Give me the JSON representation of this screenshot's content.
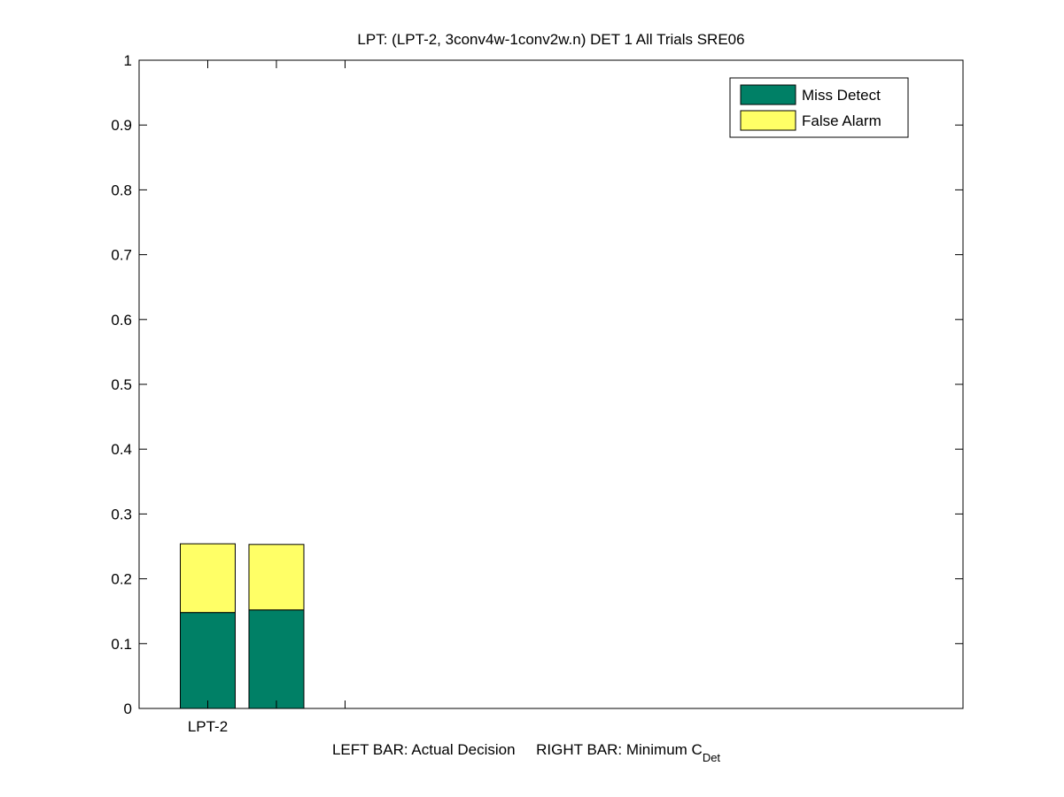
{
  "chart_data": {
    "type": "stacked_bar",
    "title": "LPT: (LPT-2, 3conv4w-1conv2w.n) DET 1 All Trials SRE06",
    "xlabel": "LEFT BAR: Actual Decision     RIGHT BAR: Minimum C",
    "xlabel_subscript": "Det",
    "x": [
      1,
      2,
      3
    ],
    "categories": [
      "LPT-2",
      null,
      null
    ],
    "series": [
      {
        "name": "Miss Detect",
        "color": "#008066",
        "values": [
          0.148,
          0.152,
          null
        ]
      },
      {
        "name": "False Alarm",
        "color": "#ffff66",
        "values": [
          0.106,
          0.101,
          null
        ]
      }
    ],
    "xlim": [
      0,
      12
    ],
    "xticks": [
      1,
      2,
      3
    ],
    "ylim": [
      0,
      1
    ],
    "yticks": [
      0,
      0.1,
      0.2,
      0.3,
      0.4,
      0.5,
      0.6,
      0.7,
      0.8,
      0.9,
      1
    ],
    "legend": "northeast"
  }
}
